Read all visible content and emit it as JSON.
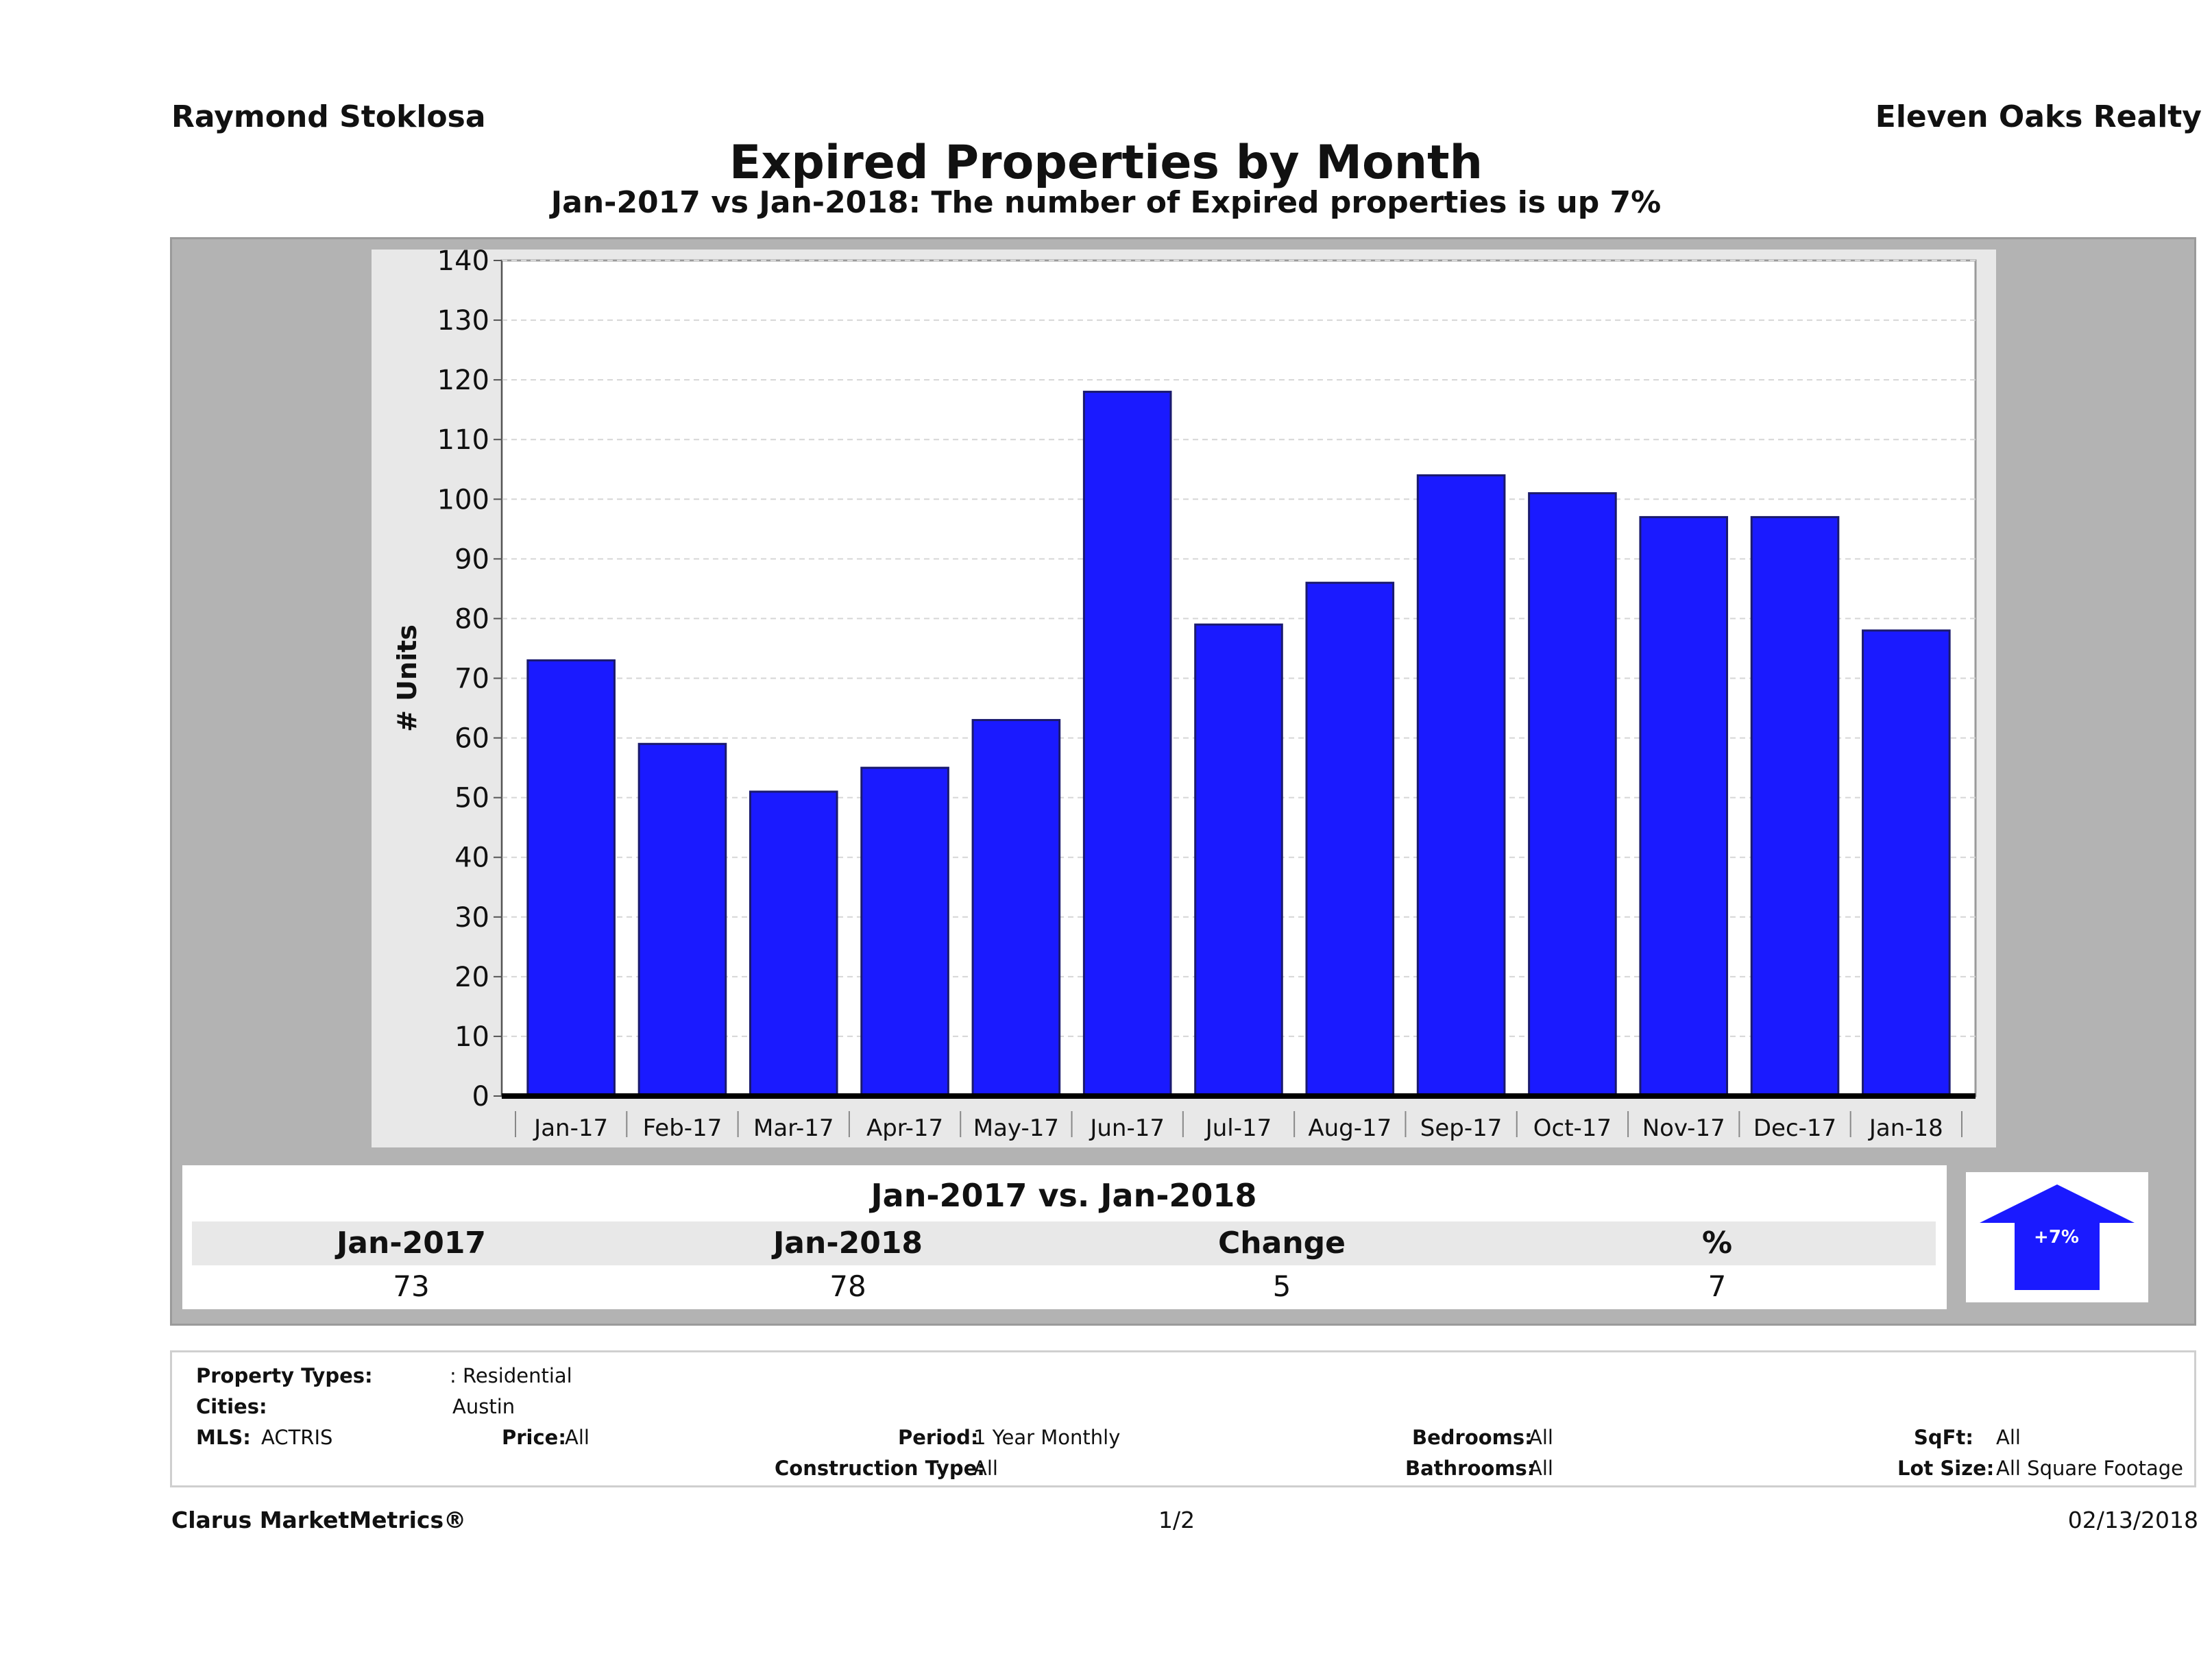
{
  "header": {
    "agent": "Raymond Stoklosa",
    "company": "Eleven Oaks Realty",
    "title": "Expired Properties by Month",
    "subtitle": "Jan-2017 vs Jan-2018: The number of Expired  properties is up 7%"
  },
  "chart_data": {
    "type": "bar",
    "categories": [
      "Jan-17",
      "Feb-17",
      "Mar-17",
      "Apr-17",
      "May-17",
      "Jun-17",
      "Jul-17",
      "Aug-17",
      "Sep-17",
      "Oct-17",
      "Nov-17",
      "Dec-17",
      "Jan-18"
    ],
    "values": [
      73,
      59,
      51,
      55,
      63,
      118,
      79,
      86,
      104,
      101,
      97,
      97,
      78
    ],
    "ylabel": "# Units",
    "ylim": [
      0,
      140
    ],
    "yticks": [
      0,
      10,
      20,
      30,
      40,
      50,
      60,
      70,
      80,
      90,
      100,
      110,
      120,
      130,
      140
    ],
    "grid": true,
    "bar_color": "#1a1aff"
  },
  "comparison": {
    "heading": "Jan-2017 vs. Jan-2018",
    "labels": [
      "Jan-2017",
      "Jan-2018",
      "Change",
      "%"
    ],
    "values": [
      "73",
      "78",
      "5",
      "7"
    ],
    "arrow_label": "+7%",
    "arrow_icon": "up-arrow-icon",
    "arrow_color": "#1a1aff"
  },
  "details": {
    "property_types_label": "Property Types:",
    "property_types_value": ": Residential",
    "cities_label": "Cities:",
    "cities_value": "Austin",
    "mls_label": "MLS:",
    "mls_value": "ACTRIS",
    "price_label": "Price:",
    "price_value": "All",
    "period_label": "Period:",
    "period_value": "1 Year Monthly",
    "construction_label": "Construction Type:",
    "construction_value": "All",
    "bedrooms_label": "Bedrooms:",
    "bedrooms_value": "All",
    "bathrooms_label": "Bathrooms:",
    "bathrooms_value": "All",
    "sqft_label": "SqFt:",
    "sqft_value": "All",
    "lotsize_label": "Lot Size:",
    "lotsize_value": "All Square Footage"
  },
  "footer": {
    "brand": "Clarus MarketMetrics®",
    "page": "1/2",
    "date": "02/13/2018"
  }
}
